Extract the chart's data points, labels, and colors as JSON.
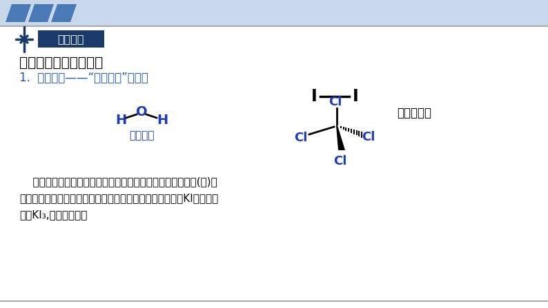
{
  "bg_color": "#ffffff",
  "header_bar_color": "#4a7ab5",
  "header_stripe_color": "#c8d8ea",
  "title_box_bg": "#1a3a6b",
  "title_box_text": "观察思考",
  "title_box_text_color": "#ffffff",
  "heading1": "影响物质溶解性的因素",
  "heading1_color": "#000000",
  "heading2_part1": "1.  分子结构——“相似相溶”规律。",
  "heading2_color": "#1a5abf",
  "water_label": "极性分子",
  "ccl4_label": "非极性分子",
  "blue_color": "#1a3abf",
  "black_color": "#000000",
  "dark_blue": "#1a3a6b",
  "gray_line_color": "#aaaaaa",
  "bottom_line1": "    碘和四氯化碳都是非极性分子，水是极性分子。非极性溶质(碘)一",
  "bottom_line2": "般能溶于非极性溶剂，而难溶于极性溶剂。后来碘单质又与KI生成可溶",
  "bottom_line3": "性盐KI₃,水溶性变强。"
}
